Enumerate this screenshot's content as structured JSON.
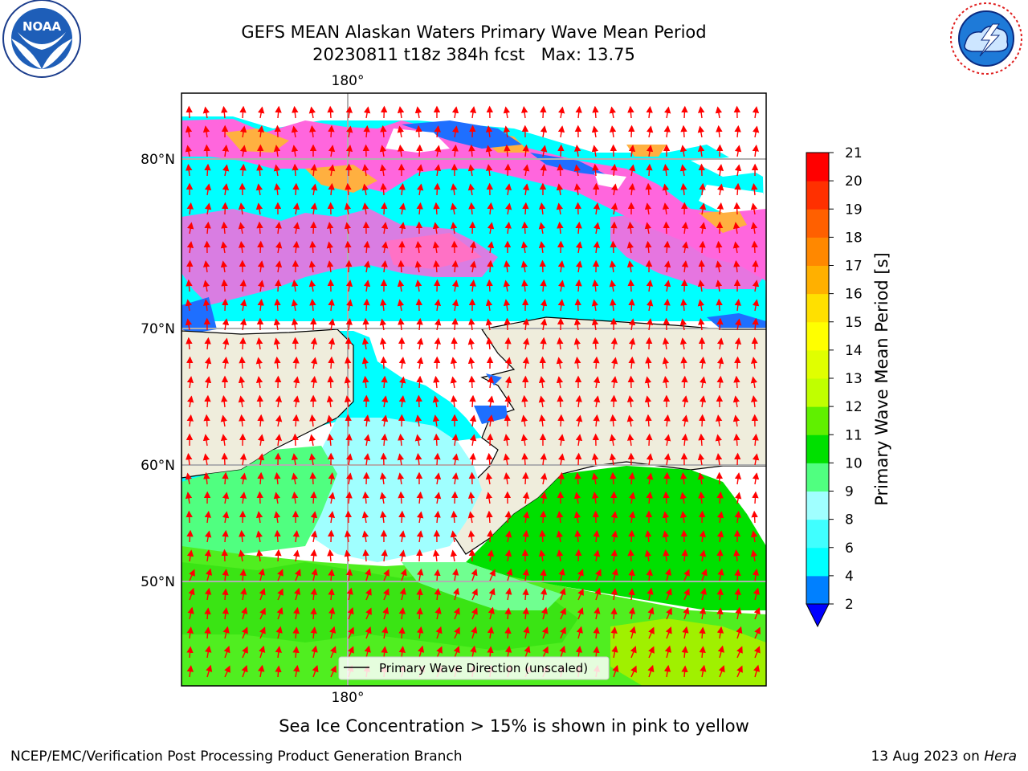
{
  "title": {
    "line1": "GEFS MEAN Alaskan Waters Primary Wave Mean Period",
    "line2": "20230811 t18z 384h fcst   Max: 13.75"
  },
  "logos": {
    "left": "NOAA",
    "left_ring_text": "NATIONAL OCEANIC AND ATMOSPHERIC ADMINISTRATION · U.S. DEPARTMENT OF COMMERCE",
    "right_ring_text": "NATIONAL WEATHER SERVICE"
  },
  "map": {
    "lon_label_top": "180°",
    "lon_label_bottom": "180°",
    "lat_labels": [
      "80°N",
      "70°N",
      "60°N",
      "50°N"
    ],
    "legend_label": "Primary Wave Direction (unscaled)",
    "land_color": "#efeddc",
    "arrow_color": "#ff0000"
  },
  "colorbar": {
    "label": "Primary Wave Mean Period [s]",
    "ticks": [
      "2",
      "4",
      "6",
      "8",
      "9",
      "10",
      "11",
      "12",
      "13",
      "14",
      "15",
      "16",
      "17",
      "18",
      "19",
      "20",
      "21"
    ],
    "colors": [
      "#0080ff",
      "#00ffff",
      "#40ffff",
      "#a0ffff",
      "#50ff80",
      "#00e000",
      "#60f000",
      "#c0ff00",
      "#e0ff00",
      "#ffff00",
      "#ffe000",
      "#ffb000",
      "#ff8800",
      "#ff6000",
      "#ff3000",
      "#ff0000"
    ],
    "extend_color": "#0000ff"
  },
  "caption": "Sea Ice Concentration > 15% is shown in pink to yellow",
  "footer": {
    "left": "NCEP/EMC/Verification Post Processing Product Generation Branch",
    "right_date": "13 Aug 2023 on ",
    "right_host": "Hera"
  }
}
